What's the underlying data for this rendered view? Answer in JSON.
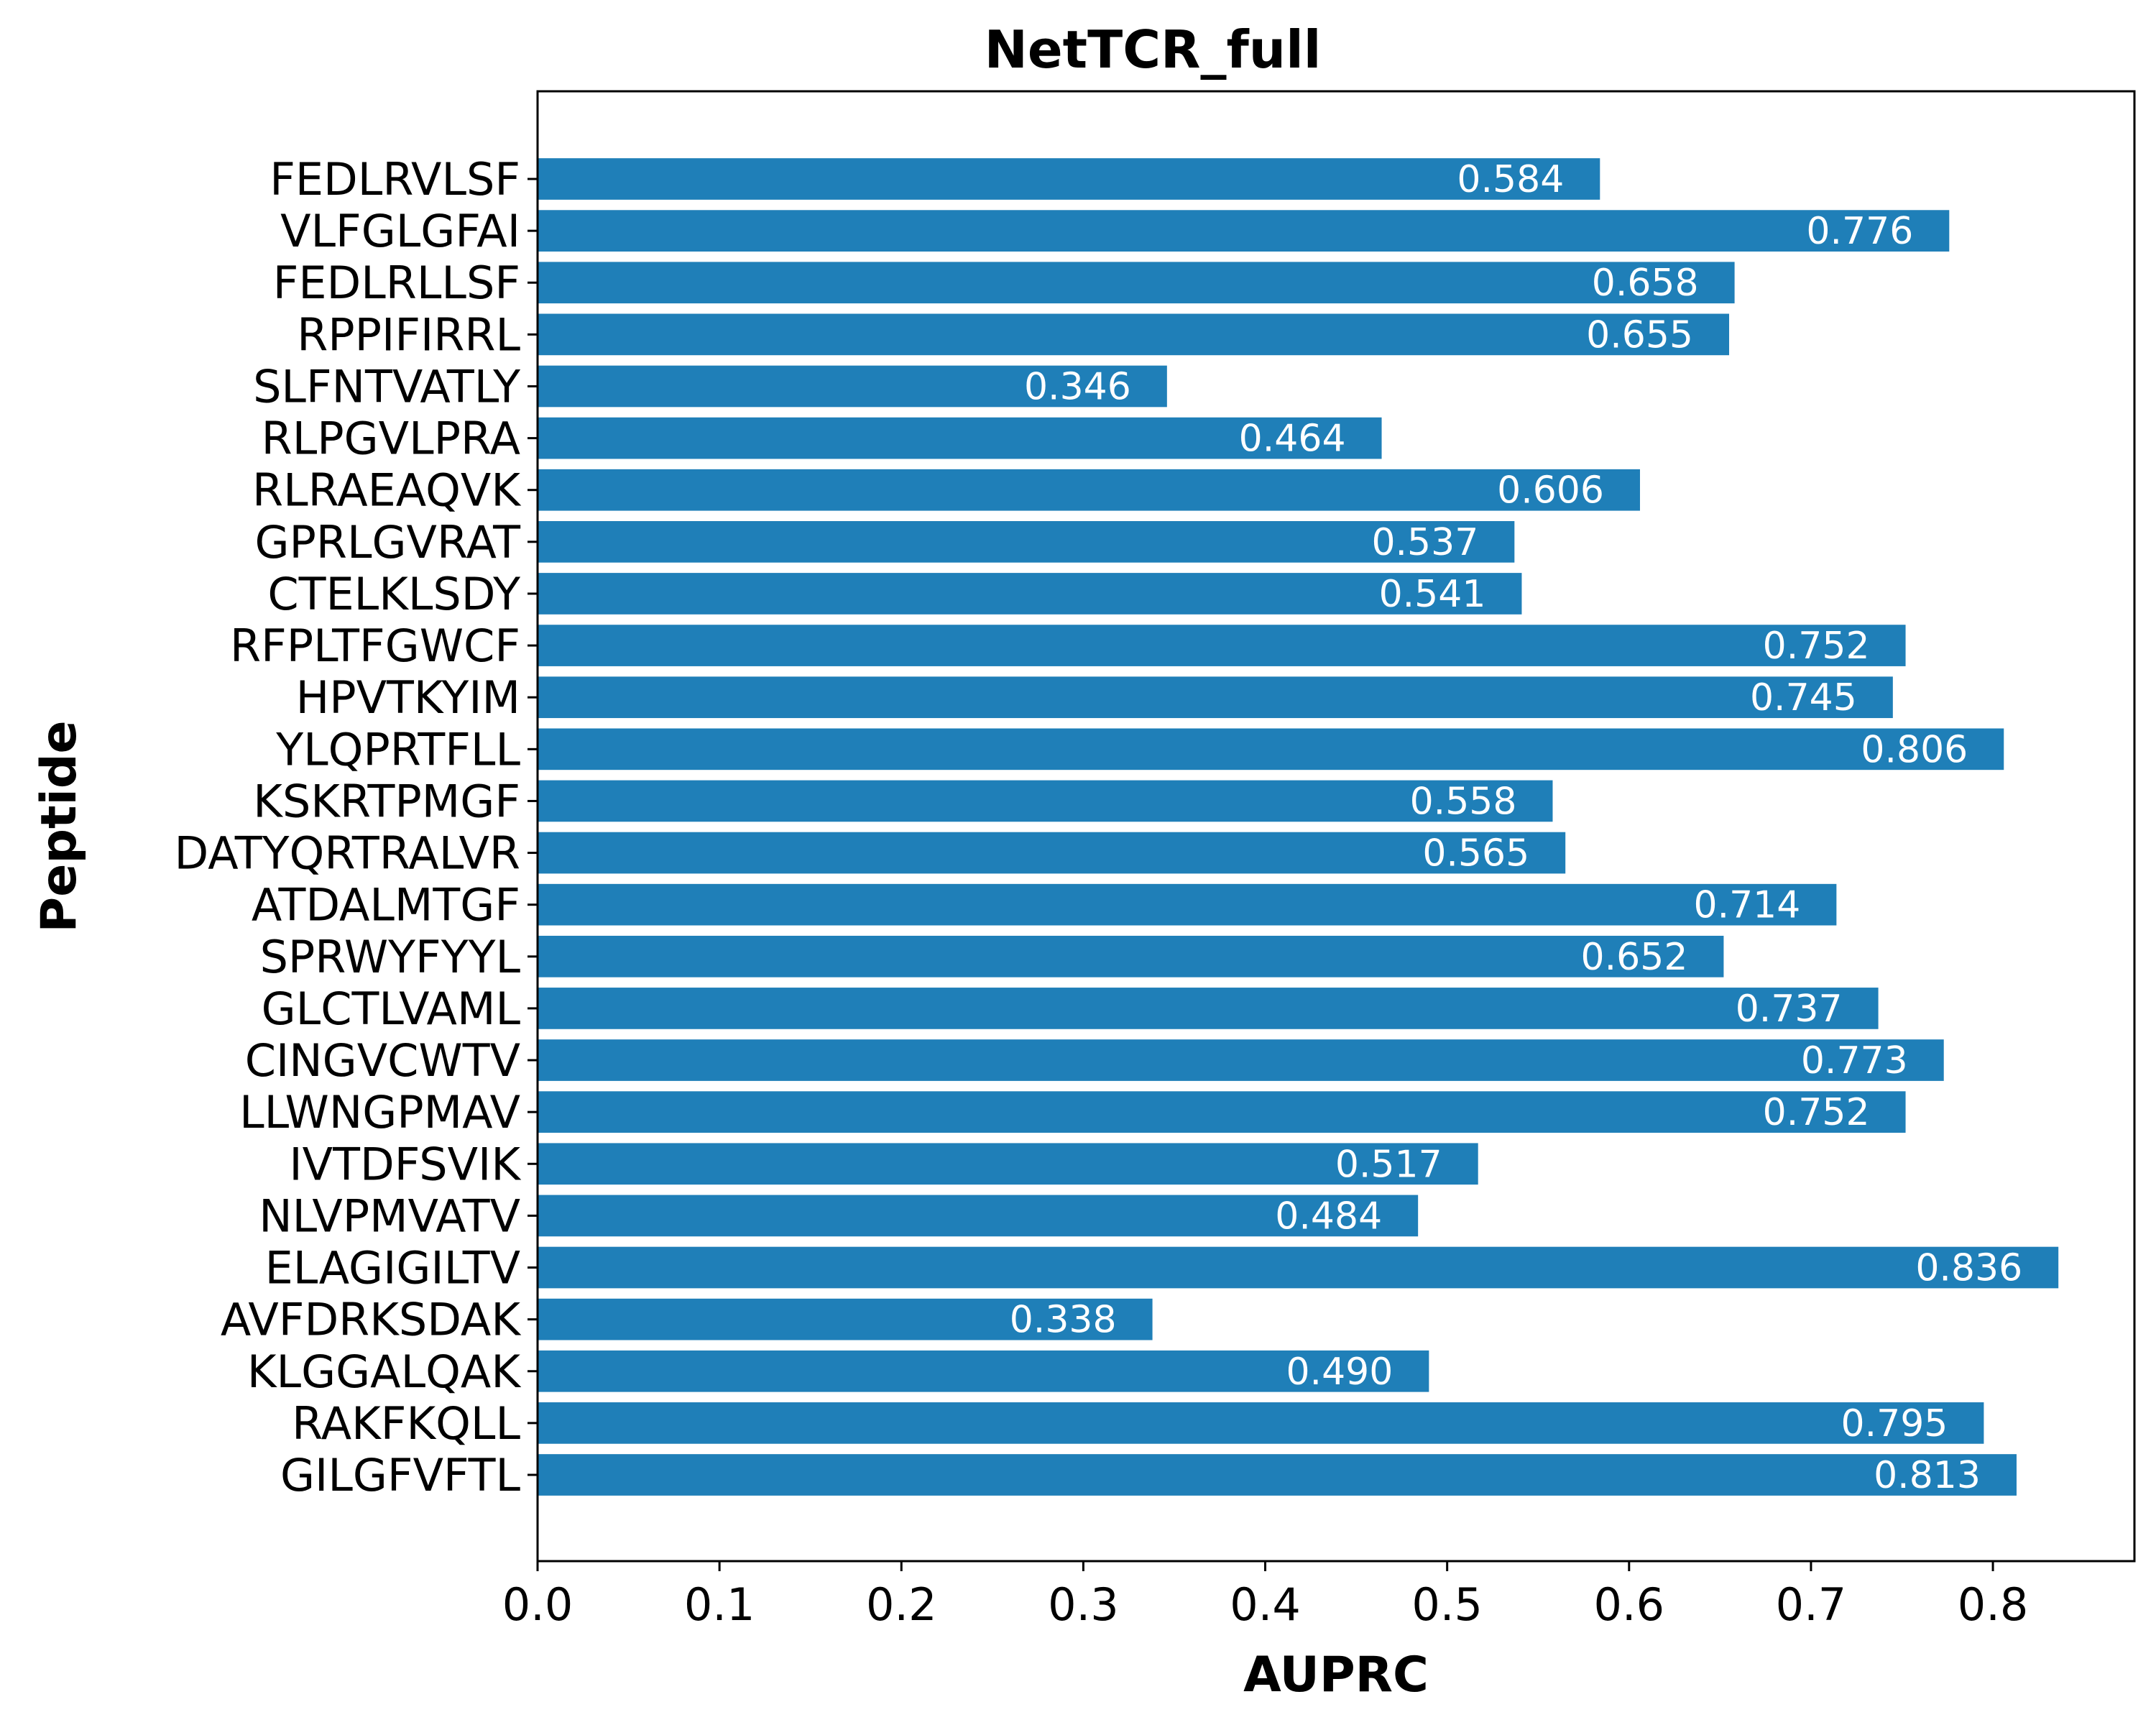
{
  "chart_data": {
    "type": "bar",
    "orientation": "horizontal",
    "title": "NetTCR_full",
    "xlabel": "AUPRC",
    "ylabel": "Peptide",
    "xlim": [
      0,
      0.8778
    ],
    "xticks": [
      "0.0",
      "0.1",
      "0.2",
      "0.3",
      "0.4",
      "0.5",
      "0.6",
      "0.7",
      "0.8"
    ],
    "grid": false,
    "bar_color": "#1f7fb8",
    "label_color": "#ffffff",
    "categories": [
      "FEDLRVLSF",
      "VLFGLGFAI",
      "FEDLRLLSF",
      "RPPIFIRRL",
      "SLFNTVATLY",
      "RLPGVLPRA",
      "RLRAEAQVK",
      "GPRLGVRAT",
      "CTELKLSDY",
      "RFPLTFGWCF",
      "HPVTKYIM",
      "YLQPRTFLL",
      "KSKRTPMGF",
      "DATYQRTRALVR",
      "ATDALMTGF",
      "SPRWYFYYL",
      "GLCTLVAML",
      "CINGVCWTV",
      "LLWNGPMAV",
      "IVTDFSVIK",
      "NLVPMVATV",
      "ELAGIGILTV",
      "AVFDRKSDAK",
      "KLGGALQAK",
      "RAKFKQLL",
      "GILGFVFTL"
    ],
    "values": [
      0.584,
      0.776,
      0.658,
      0.655,
      0.346,
      0.464,
      0.606,
      0.537,
      0.541,
      0.752,
      0.745,
      0.806,
      0.558,
      0.565,
      0.714,
      0.652,
      0.737,
      0.773,
      0.752,
      0.517,
      0.484,
      0.836,
      0.338,
      0.49,
      0.795,
      0.813
    ],
    "value_labels": [
      "0.584",
      "0.776",
      "0.658",
      "0.655",
      "0.346",
      "0.464",
      "0.606",
      "0.537",
      "0.541",
      "0.752",
      "0.745",
      "0.806",
      "0.558",
      "0.565",
      "0.714",
      "0.652",
      "0.737",
      "0.773",
      "0.752",
      "0.517",
      "0.484",
      "0.836",
      "0.338",
      "0.490",
      "0.795",
      "0.813"
    ]
  }
}
